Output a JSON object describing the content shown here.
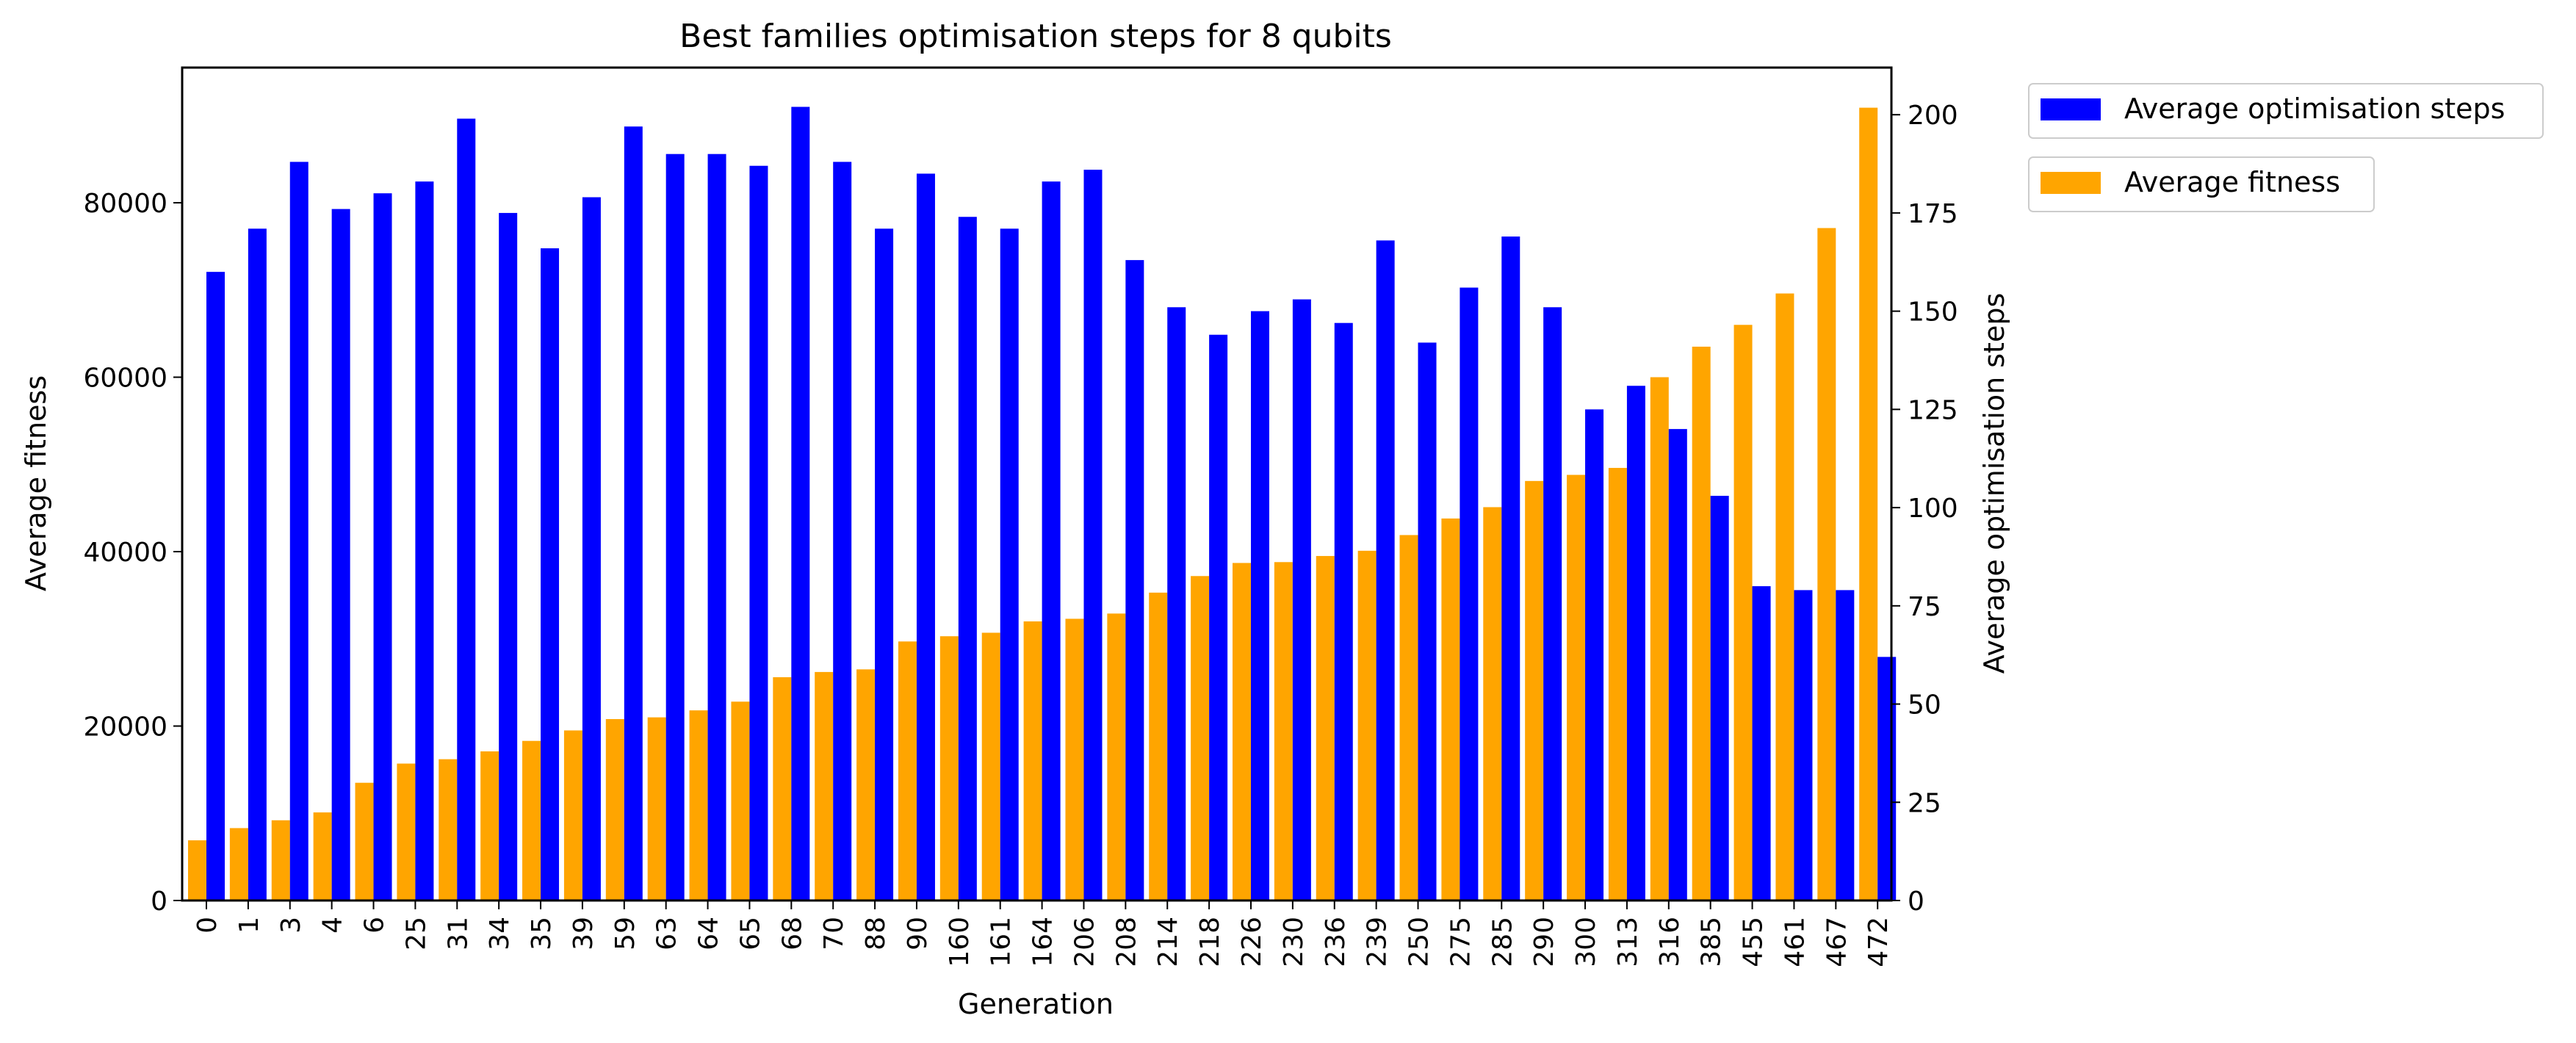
{
  "chart_data": {
    "type": "bar",
    "title": "Best families optimisation steps for 8 qubits",
    "xlabel": "Generation",
    "ylabel_left": "Average fitness",
    "ylabel_right": "Average optimisation steps",
    "ylim_left": [
      0,
      95500
    ],
    "ylim_right": [
      0,
      212
    ],
    "yticks_left": [
      0,
      20000,
      40000,
      60000,
      80000
    ],
    "yticks_right": [
      0,
      25,
      50,
      75,
      100,
      125,
      150,
      175,
      200
    ],
    "legend_position": "outside-top-right",
    "grid": false,
    "categories": [
      "0",
      "1",
      "3",
      "4",
      "6",
      "25",
      "31",
      "34",
      "35",
      "39",
      "59",
      "63",
      "64",
      "65",
      "68",
      "70",
      "88",
      "90",
      "160",
      "161",
      "164",
      "206",
      "208",
      "214",
      "218",
      "226",
      "230",
      "236",
      "239",
      "250",
      "275",
      "285",
      "290",
      "300",
      "313",
      "316",
      "385",
      "455",
      "461",
      "467",
      "472"
    ],
    "series": [
      {
        "name": "Average optimisation steps",
        "axis": "right",
        "color": "#0000ff",
        "values": [
          160,
          171,
          188,
          176,
          180,
          183,
          199,
          175,
          166,
          179,
          197,
          190,
          190,
          187,
          202,
          188,
          171,
          185,
          174,
          171,
          183,
          186,
          163,
          151,
          144,
          150,
          153,
          147,
          168,
          142,
          156,
          169,
          151,
          125,
          131,
          120,
          103,
          80,
          79,
          79,
          62
        ]
      },
      {
        "name": "Average fitness",
        "axis": "left",
        "color": "#ffa500",
        "values": [
          6900,
          8300,
          9200,
          10100,
          13500,
          15700,
          16200,
          17100,
          18300,
          19500,
          20800,
          21000,
          21800,
          22800,
          25600,
          26200,
          26500,
          29700,
          30300,
          30700,
          32000,
          32300,
          32900,
          35300,
          37200,
          38700,
          38800,
          39500,
          40100,
          41900,
          43800,
          45100,
          48100,
          48800,
          49600,
          60000,
          63500,
          66000,
          69600,
          77100,
          90900
        ]
      }
    ]
  }
}
